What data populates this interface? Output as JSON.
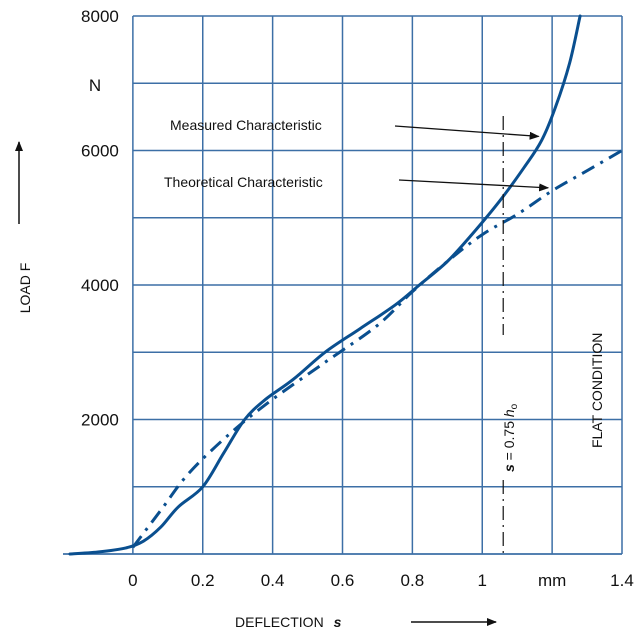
{
  "chart_data": {
    "type": "line",
    "xlabel": "DEFLECTION",
    "xlabel_symbol": "s",
    "ylabel": "LOAD F",
    "y_unit": "N",
    "x_unit": "mm",
    "xlim": [
      -0.2,
      1.4
    ],
    "ylim": [
      0,
      8000
    ],
    "x_ticks": [
      {
        "value": 0,
        "label": "0"
      },
      {
        "value": 0.2,
        "label": "0.2"
      },
      {
        "value": 0.4,
        "label": "0.4"
      },
      {
        "value": 0.6,
        "label": "0.6"
      },
      {
        "value": 0.8,
        "label": "0.8"
      },
      {
        "value": 1.0,
        "label": "1"
      },
      {
        "value": 1.2,
        "label": "mm"
      },
      {
        "value": 1.4,
        "label": "1.4"
      }
    ],
    "y_ticks": [
      {
        "value": 2000,
        "label": "2000"
      },
      {
        "value": 4000,
        "label": "4000"
      },
      {
        "value": 6000,
        "label": "6000"
      },
      {
        "value": 8000,
        "label": "8000"
      }
    ],
    "grid": true,
    "colors": {
      "curve": "#0a4f8f",
      "grid": "#3c6fa6",
      "text": "#111111"
    },
    "series": [
      {
        "name": "Measured Characteristic",
        "style": "solid",
        "points": [
          [
            -0.18,
            0
          ],
          [
            -0.1,
            30
          ],
          [
            -0.02,
            90
          ],
          [
            0.03,
            190
          ],
          [
            0.08,
            400
          ],
          [
            0.13,
            700
          ],
          [
            0.2,
            1000
          ],
          [
            0.26,
            1500
          ],
          [
            0.32,
            2000
          ],
          [
            0.38,
            2300
          ],
          [
            0.46,
            2600
          ],
          [
            0.55,
            3000
          ],
          [
            0.65,
            3350
          ],
          [
            0.75,
            3700
          ],
          [
            0.82,
            4000
          ],
          [
            0.9,
            4350
          ],
          [
            0.97,
            4750
          ],
          [
            1.05,
            5250
          ],
          [
            1.12,
            5750
          ],
          [
            1.17,
            6150
          ],
          [
            1.21,
            6650
          ],
          [
            1.25,
            7300
          ],
          [
            1.28,
            8000
          ]
        ]
      },
      {
        "name": "Theoretical Characteristic",
        "style": "dashdot",
        "points": [
          [
            0,
            100
          ],
          [
            0.08,
            650
          ],
          [
            0.16,
            1200
          ],
          [
            0.28,
            1800
          ],
          [
            0.4,
            2300
          ],
          [
            0.55,
            2850
          ],
          [
            0.7,
            3400
          ],
          [
            0.8,
            3900
          ],
          [
            0.9,
            4350
          ],
          [
            1.0,
            4750
          ],
          [
            1.1,
            5050
          ],
          [
            1.2,
            5400
          ],
          [
            1.3,
            5700
          ],
          [
            1.4,
            6000
          ]
        ]
      }
    ],
    "annotations": [
      {
        "text": "Measured Characteristic",
        "target": [
          1.17,
          6150
        ]
      },
      {
        "text": "Theoretical Characteristic",
        "target": [
          1.2,
          5400
        ]
      }
    ],
    "reference_lines": [
      {
        "x": 1.06,
        "style": "dashdot",
        "label_parts": [
          "s",
          " = 0.75 ",
          "h",
          "o"
        ]
      },
      {
        "x": 1.2,
        "label": "FLAT CONDITION"
      }
    ]
  }
}
